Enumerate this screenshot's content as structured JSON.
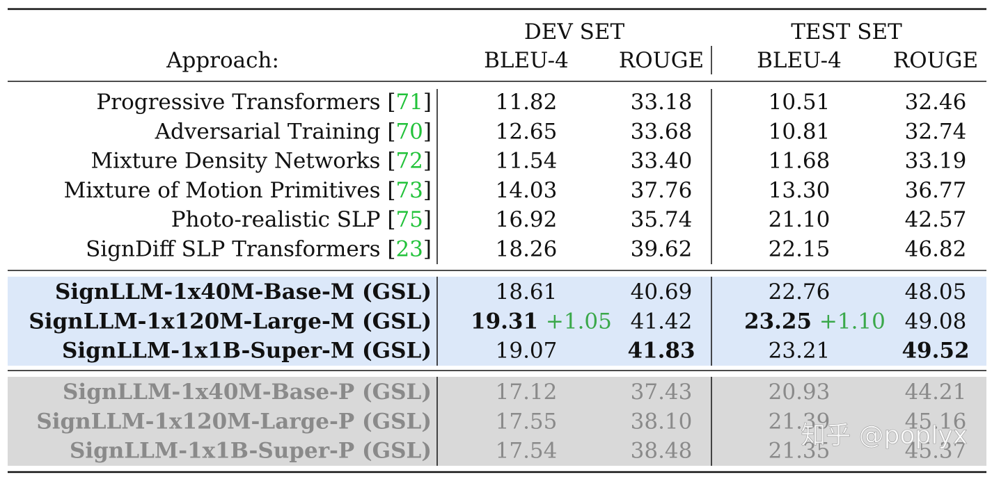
{
  "table": {
    "header": {
      "approach_label": "Approach:",
      "dev_set": "DEV SET",
      "test_set": "TEST SET",
      "bleu": "BLEU-4",
      "rouge": "ROUGE"
    },
    "groups": [
      {
        "style": "normal",
        "rows": [
          {
            "name": "Progressive Transformers",
            "cite": "71",
            "dev_bleu": "11.82",
            "dev_rouge": "33.18",
            "test_bleu": "10.51",
            "test_rouge": "32.46"
          },
          {
            "name": "Adversarial Training",
            "cite": "70",
            "dev_bleu": "12.65",
            "dev_rouge": "33.68",
            "test_bleu": "10.81",
            "test_rouge": "32.74"
          },
          {
            "name": "Mixture Density Networks",
            "cite": "72",
            "dev_bleu": "11.54",
            "dev_rouge": "33.40",
            "test_bleu": "11.68",
            "test_rouge": "33.19"
          },
          {
            "name": "Mixture of Motion Primitives",
            "cite": "73",
            "dev_bleu": "14.03",
            "dev_rouge": "37.76",
            "test_bleu": "13.30",
            "test_rouge": "36.77"
          },
          {
            "name": "Photo-realistic SLP",
            "cite": "75",
            "dev_bleu": "16.92",
            "dev_rouge": "35.74",
            "test_bleu": "21.10",
            "test_rouge": "42.57"
          },
          {
            "name": "SignDiff SLP Transformers",
            "cite": "23",
            "dev_bleu": "18.26",
            "dev_rouge": "39.62",
            "test_bleu": "22.15",
            "test_rouge": "46.82"
          }
        ]
      },
      {
        "style": "highlight",
        "rows": [
          {
            "name": "SignLLM-1x40M-Base-M (GSL)",
            "dev_bleu": "18.61",
            "dev_rouge": "40.69",
            "test_bleu": "22.76",
            "test_rouge": "48.05"
          },
          {
            "name": "SignLLM-1x120M-Large-M (GSL)",
            "dev_bleu": "19.31",
            "dev_bleu_gain": "+1.05",
            "dev_bleu_bold": true,
            "dev_rouge": "41.42",
            "test_bleu": "23.25",
            "test_bleu_gain": "+1.10",
            "test_bleu_bold": true,
            "test_rouge": "49.08"
          },
          {
            "name": "SignLLM-1x1B-Super-M (GSL)",
            "dev_bleu": "19.07",
            "dev_rouge": "41.83",
            "dev_rouge_bold": true,
            "test_bleu": "23.21",
            "test_rouge": "49.52",
            "test_rouge_bold": true
          }
        ]
      },
      {
        "style": "muted",
        "rows": [
          {
            "name": "SignLLM-1x40M-Base-P (GSL)",
            "dev_bleu": "17.12",
            "dev_rouge": "37.43",
            "test_bleu": "20.93",
            "test_rouge": "44.21"
          },
          {
            "name": "SignLLM-1x120M-Large-P (GSL)",
            "dev_bleu": "17.55",
            "dev_rouge": "38.10",
            "test_bleu": "21.39",
            "test_rouge": "45.16"
          },
          {
            "name": "SignLLM-1x1B-Super-P (GSL)",
            "dev_bleu": "17.54",
            "dev_rouge": "38.48",
            "test_bleu": "21.35",
            "test_rouge": "45.37"
          }
        ]
      }
    ]
  },
  "watermark": "知乎 @poplyx",
  "colors": {
    "highlight_bg": "#dce8f9",
    "muted_bg": "#d9d9d9",
    "muted_text": "#8a8a8a",
    "cite_green": "#22c23a",
    "gain_green": "#3aa84a"
  }
}
